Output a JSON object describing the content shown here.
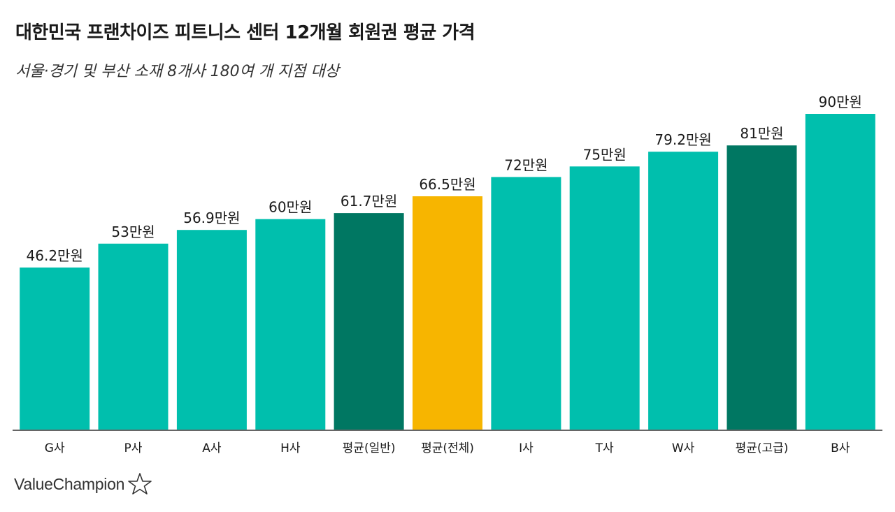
{
  "chart_data": {
    "type": "bar",
    "title": "대한민국 프랜차이즈 피트니스 센터 12개월 회원권 평균 가격",
    "subtitle": "서울·경기 및 부산 소재 8개사 180여 개 지점 대상",
    "categories": [
      "G사",
      "P사",
      "A사",
      "H사",
      "평균(일반)",
      "평균(전체)",
      "I사",
      "T사",
      "W사",
      "평균(고급)",
      "B사"
    ],
    "values": [
      46.2,
      53,
      56.9,
      60,
      61.7,
      66.5,
      72,
      75,
      79.2,
      81,
      90
    ],
    "value_labels": [
      "46.2만원",
      "53만원",
      "56.9만원",
      "60만원",
      "61.7만원",
      "66.5만원",
      "72만원",
      "75만원",
      "79.2만원",
      "81만원",
      "90만원"
    ],
    "bar_colors": [
      "#00bfad",
      "#00bfad",
      "#00bfad",
      "#00bfad",
      "#007762",
      "#f7b500",
      "#00bfad",
      "#00bfad",
      "#00bfad",
      "#007762",
      "#00bfad"
    ],
    "ylim": [
      0,
      90
    ],
    "grid": false,
    "xlabel": "",
    "ylabel": ""
  },
  "brand": {
    "name": "ValueChampion",
    "logo_icon": "star-outline-icon"
  }
}
